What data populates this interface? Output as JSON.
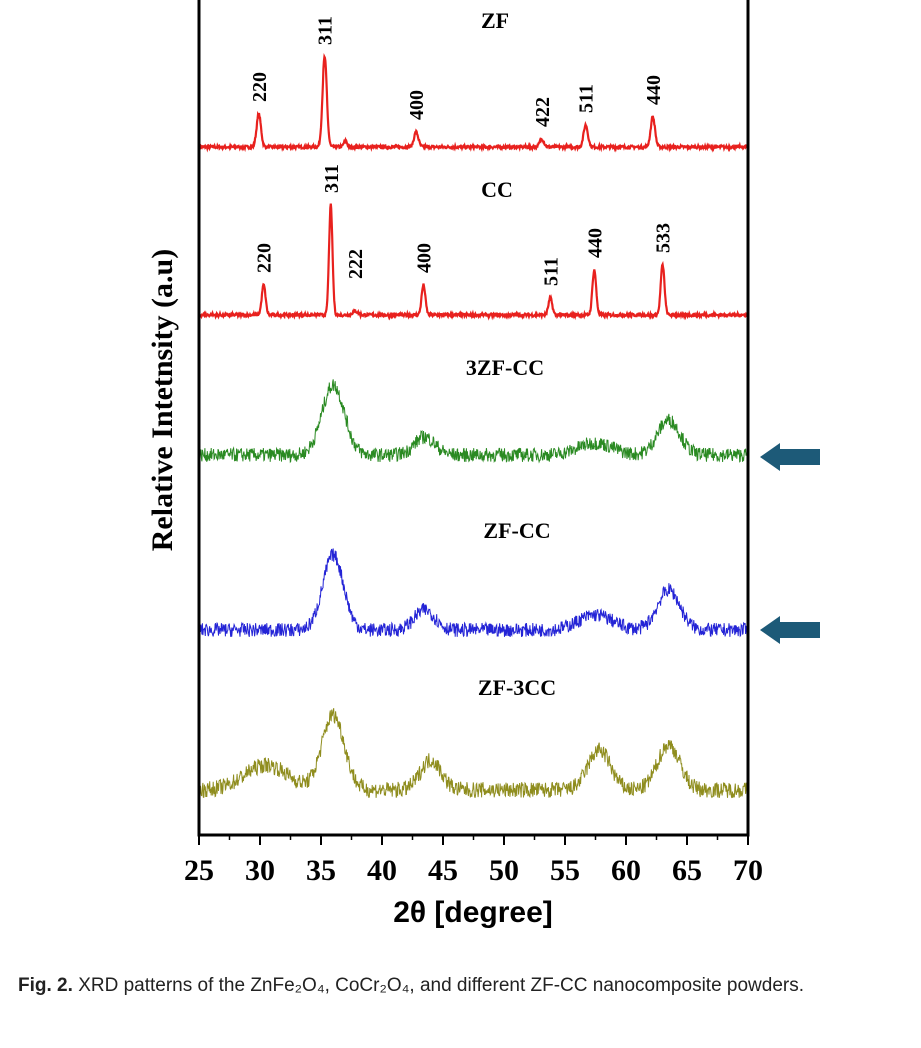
{
  "chart_data": {
    "type": "line",
    "xlabel": "2θ [degree]",
    "ylabel": "Relative Intetnsity (a.u)",
    "xlim": [
      25,
      70
    ],
    "xticks": [
      25,
      30,
      35,
      40,
      45,
      50,
      55,
      60,
      65,
      70
    ],
    "grid": false,
    "series": [
      {
        "name": "ZF",
        "color": "#e8211e",
        "noise": 3,
        "peaks": [
          {
            "x": 29.9,
            "h": 33,
            "w": 0.25,
            "label": "220"
          },
          {
            "x": 35.3,
            "h": 90,
            "w": 0.25,
            "label": "311"
          },
          {
            "x": 37.0,
            "h": 6,
            "w": 0.2,
            "label": ""
          },
          {
            "x": 42.8,
            "h": 15,
            "w": 0.25,
            "label": "400"
          },
          {
            "x": 53.1,
            "h": 8,
            "w": 0.25,
            "label": "422"
          },
          {
            "x": 56.7,
            "h": 22,
            "w": 0.25,
            "label": "511"
          },
          {
            "x": 62.2,
            "h": 30,
            "w": 0.25,
            "label": "440"
          }
        ]
      },
      {
        "name": "CC",
        "color": "#e8211e",
        "noise": 3,
        "peaks": [
          {
            "x": 30.3,
            "h": 30,
            "w": 0.22,
            "label": "220"
          },
          {
            "x": 35.8,
            "h": 110,
            "w": 0.2,
            "label": "311"
          },
          {
            "x": 37.8,
            "h": 4,
            "w": 0.3,
            "label": "222"
          },
          {
            "x": 43.4,
            "h": 30,
            "w": 0.22,
            "label": "400"
          },
          {
            "x": 53.8,
            "h": 17,
            "w": 0.22,
            "label": "511"
          },
          {
            "x": 57.4,
            "h": 45,
            "w": 0.22,
            "label": "440"
          },
          {
            "x": 63.0,
            "h": 50,
            "w": 0.22,
            "label": "533"
          }
        ]
      },
      {
        "name": "3ZF-CC",
        "color": "#2a8a22",
        "noise": 14,
        "peaks": [
          {
            "x": 36.0,
            "h": 70,
            "w": 1.3
          },
          {
            "x": 43.5,
            "h": 18,
            "w": 1.2
          },
          {
            "x": 57.5,
            "h": 12,
            "w": 2
          },
          {
            "x": 63.5,
            "h": 35,
            "w": 1.3
          }
        ]
      },
      {
        "name": "ZF-CC",
        "color": "#2424d6",
        "noise": 14,
        "peaks": [
          {
            "x": 36.0,
            "h": 75,
            "w": 1.2
          },
          {
            "x": 43.5,
            "h": 20,
            "w": 1.2
          },
          {
            "x": 57.5,
            "h": 15,
            "w": 2
          },
          {
            "x": 63.5,
            "h": 40,
            "w": 1.3
          }
        ]
      },
      {
        "name": "ZF-3CC",
        "color": "#8f8d1e",
        "noise": 16,
        "peaks": [
          {
            "x": 30.5,
            "h": 25,
            "w": 2.5
          },
          {
            "x": 36.0,
            "h": 75,
            "w": 1.3
          },
          {
            "x": 44.0,
            "h": 30,
            "w": 1.2
          },
          {
            "x": 57.8,
            "h": 40,
            "w": 1.3
          },
          {
            "x": 63.5,
            "h": 45,
            "w": 1.3
          }
        ]
      }
    ],
    "arrows": {
      "color": "#1d5a78",
      "targets": [
        "3ZF-CC",
        "ZF-CC"
      ]
    }
  },
  "caption": {
    "label": "Fig. 2.",
    "text": "XRD patterns of the ZnFe₂O₄, CoCr₂O₄, and different ZF-CC nanocomposite powders."
  }
}
